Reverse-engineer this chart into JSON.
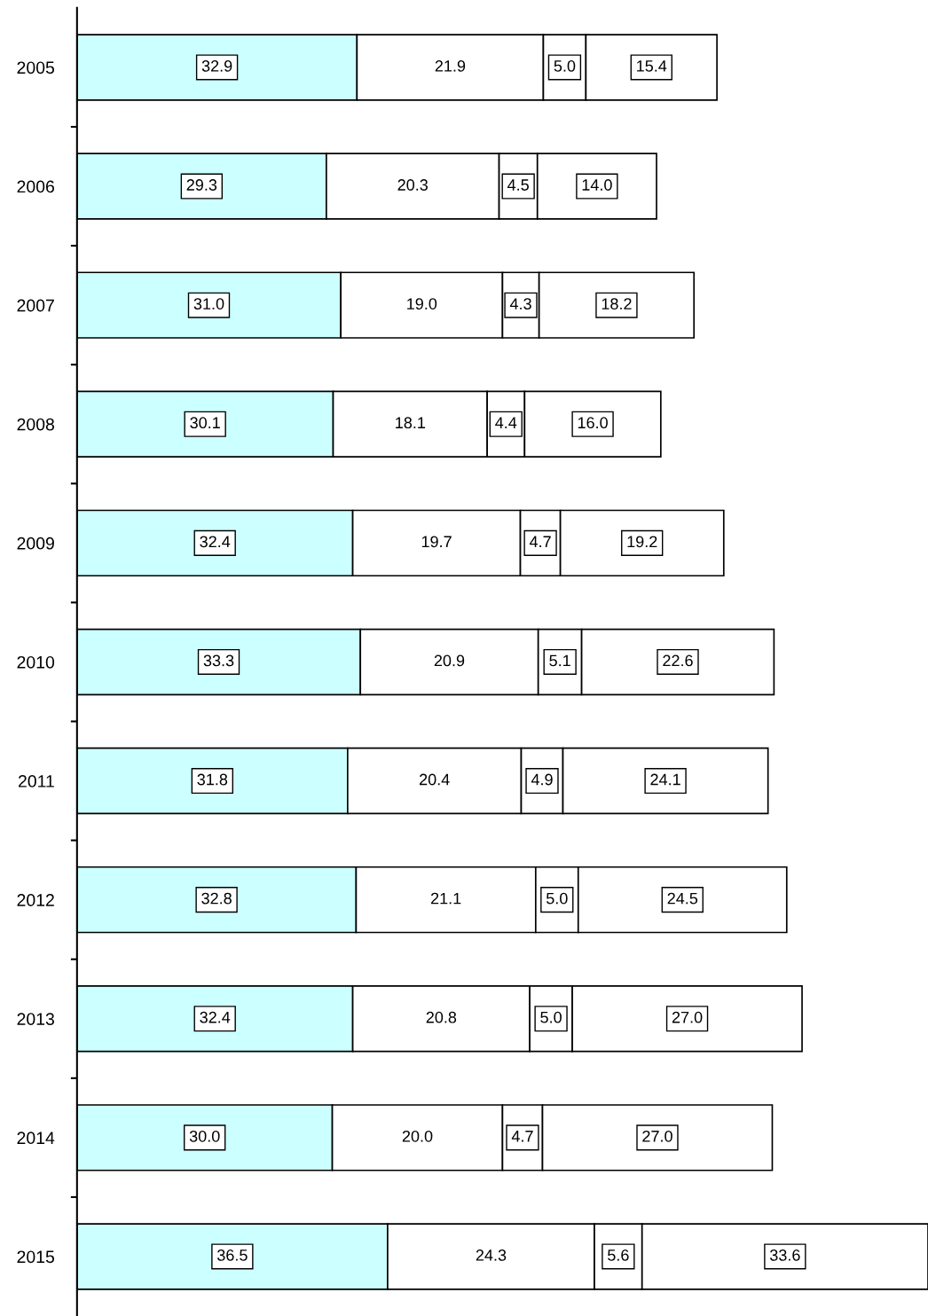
{
  "chart_data": {
    "type": "bar",
    "orientation": "horizontal",
    "stacked": true,
    "grid": false,
    "legend": false,
    "categories": [
      "2005",
      "2006",
      "2007",
      "2008",
      "2009",
      "2010",
      "2011",
      "2012",
      "2013",
      "2014",
      "2015"
    ],
    "series": [
      {
        "color": "#ccffff",
        "values": [
          32.9,
          29.3,
          31.0,
          30.1,
          32.4,
          33.3,
          31.8,
          32.8,
          32.4,
          30.0,
          36.5
        ],
        "value_labels": [
          "32.9",
          "29.3",
          "31.0",
          "30.1",
          "32.4",
          "33.3",
          "31.8",
          "32.8",
          "32.4",
          "30.0",
          "36.5"
        ]
      },
      {
        "color": "#ffffff",
        "values": [
          21.9,
          20.3,
          19.0,
          18.1,
          19.7,
          20.9,
          20.4,
          21.1,
          20.8,
          20.0,
          24.3
        ],
        "value_labels": [
          "21.9",
          "20.3",
          "19.0",
          "18.1",
          "19.7",
          "20.9",
          "20.4",
          "21.1",
          "20.8",
          "20.0",
          "24.3"
        ]
      },
      {
        "color": "#ffffff",
        "values": [
          5.0,
          4.5,
          4.3,
          4.4,
          4.7,
          5.1,
          4.9,
          5.0,
          5.0,
          4.7,
          5.6
        ],
        "value_labels": [
          "5.0",
          "4.5",
          "4.3",
          "4.4",
          "4.7",
          "5.1",
          "4.9",
          "5.0",
          "5.0",
          "4.7",
          "5.6"
        ]
      },
      {
        "color": "#ffffff",
        "values": [
          15.4,
          14.0,
          18.2,
          16.0,
          19.2,
          22.6,
          24.1,
          24.5,
          27.0,
          27.0,
          33.6
        ],
        "value_labels": [
          "15.4",
          "14.0",
          "18.2",
          "16.0",
          "19.2",
          "22.6",
          "24.1",
          "24.5",
          "27.0",
          "27.0",
          "33.6"
        ]
      }
    ]
  }
}
